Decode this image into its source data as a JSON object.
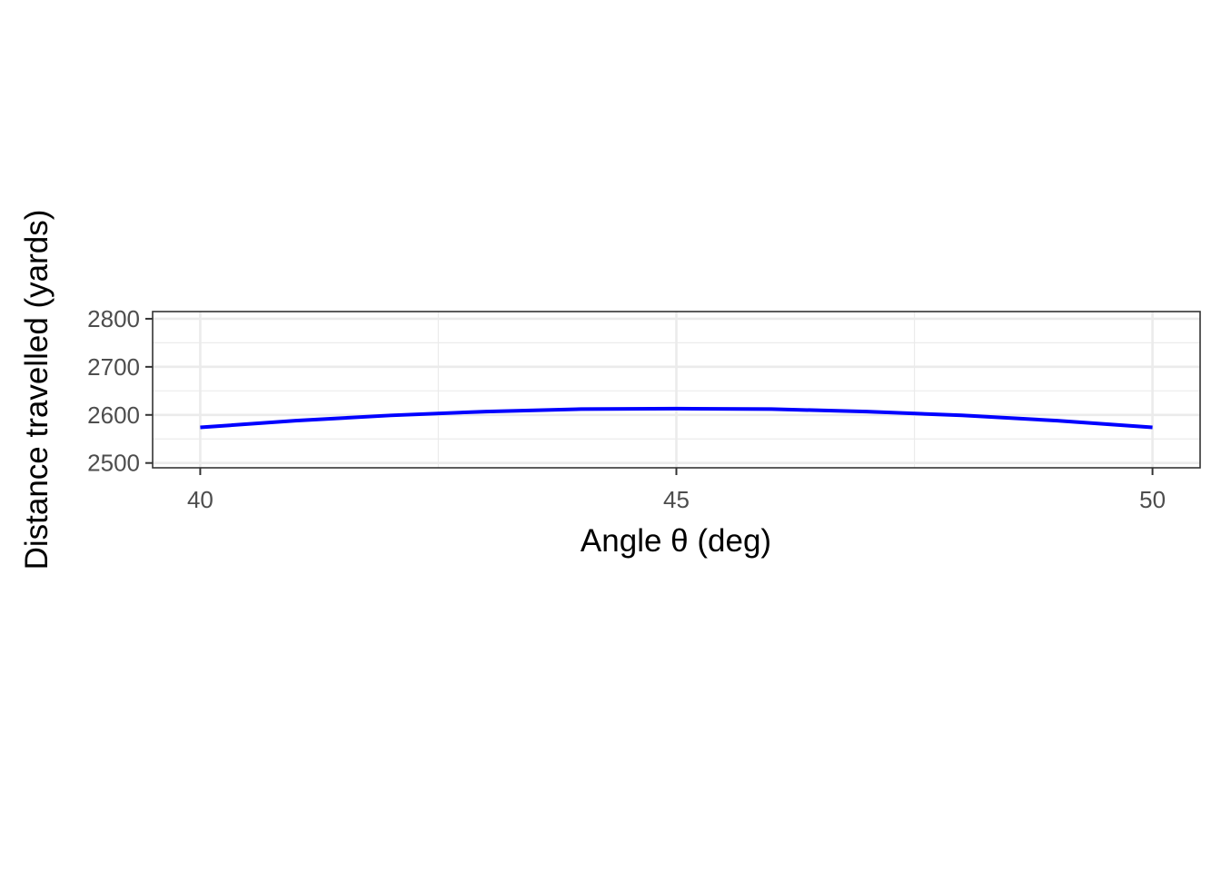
{
  "chart_data": {
    "type": "line",
    "xlabel": "Angle θ (deg)",
    "ylabel": "Distance travelled (yards)",
    "xlim": [
      39.5,
      50.5
    ],
    "ylim": [
      2490,
      2815
    ],
    "x_ticks": [
      40,
      45,
      50
    ],
    "x_tick_labels": [
      "40",
      "45",
      "50"
    ],
    "x_minor_ticks": [
      42.5,
      47.5
    ],
    "y_ticks": [
      2500,
      2600,
      2700,
      2800
    ],
    "y_tick_labels": [
      "2500",
      "2600",
      "2700",
      "2800"
    ],
    "y_minor_ticks": [
      2550,
      2650,
      2750
    ],
    "grid": true,
    "series": [
      {
        "color": "#0000ff",
        "x": [
          40,
          41,
          42,
          43,
          44,
          45,
          46,
          47,
          48,
          49,
          50
        ],
        "y": [
          2574,
          2588,
          2599,
          2607,
          2612,
          2613,
          2612,
          2607,
          2599,
          2588,
          2574
        ]
      }
    ]
  }
}
